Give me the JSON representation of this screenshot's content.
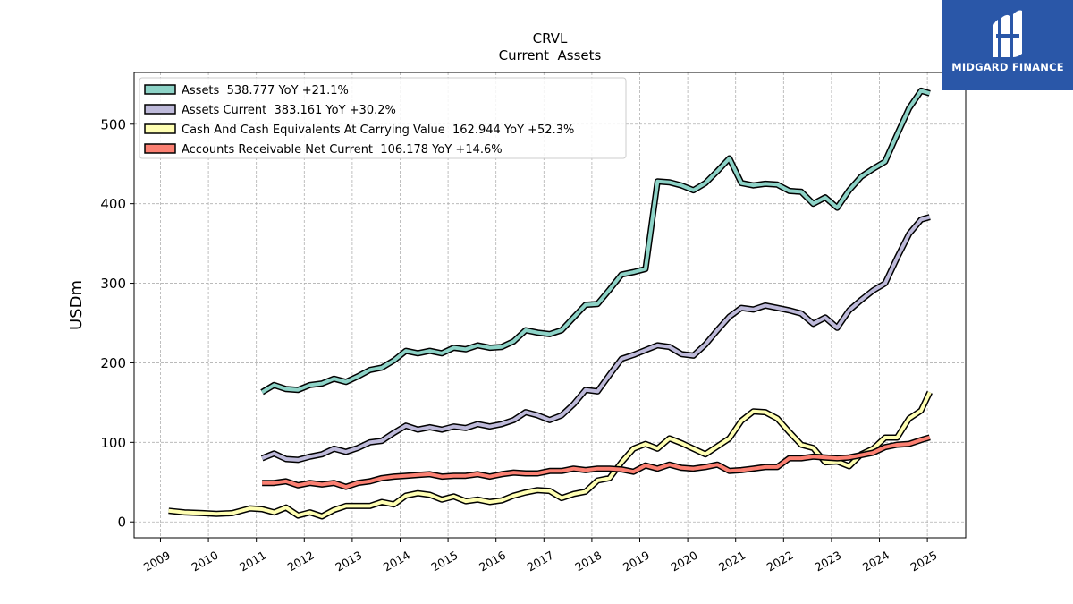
{
  "brand": {
    "name": "MIDGARD FINANCE",
    "bg_color": "#2a57a8"
  },
  "chart_data": {
    "type": "line",
    "title": "CRVL",
    "subtitle": "Current  Assets",
    "ylabel": "USDm",
    "xlabel": "",
    "xlim": [
      2008.45,
      2025.8
    ],
    "ylim": [
      -20,
      565
    ],
    "yticks": [
      0,
      100,
      200,
      300,
      400,
      500
    ],
    "xticks": [
      2009,
      2010,
      2011,
      2012,
      2013,
      2014,
      2015,
      2016,
      2017,
      2018,
      2019,
      2020,
      2021,
      2022,
      2023,
      2024,
      2025
    ],
    "grid": true,
    "legend_position": "top-left",
    "series": [
      {
        "name": "Assets",
        "legend": "Assets  538.777 YoY +21.1%",
        "color": "#8dd3c7",
        "x": [
          2011.12,
          2011.37,
          2011.62,
          2011.87,
          2012.12,
          2012.37,
          2012.62,
          2012.87,
          2013.12,
          2013.37,
          2013.62,
          2013.87,
          2014.12,
          2014.37,
          2014.62,
          2014.87,
          2015.12,
          2015.37,
          2015.62,
          2015.87,
          2016.12,
          2016.37,
          2016.62,
          2016.87,
          2017.12,
          2017.37,
          2017.62,
          2017.87,
          2018.12,
          2018.37,
          2018.62,
          2018.87,
          2019.12,
          2019.37,
          2019.62,
          2019.87,
          2020.12,
          2020.37,
          2020.62,
          2020.87,
          2021.12,
          2021.37,
          2021.62,
          2021.87,
          2022.12,
          2022.37,
          2022.62,
          2022.87,
          2023.12,
          2023.37,
          2023.62,
          2023.87,
          2024.12,
          2024.37,
          2024.62,
          2024.87,
          2025.05
        ],
        "values": [
          163,
          172,
          167,
          166,
          172,
          174,
          180,
          176,
          183,
          191,
          194,
          203,
          215,
          212,
          215,
          212,
          219,
          217,
          222,
          219,
          220,
          227,
          241,
          238,
          236,
          241,
          257,
          273,
          274,
          292,
          311,
          314,
          318,
          428,
          427,
          423,
          417,
          426,
          441,
          457,
          426,
          423,
          425,
          424,
          416,
          415,
          400,
          408,
          395,
          417,
          434,
          444,
          453,
          487,
          520,
          542,
          538.777
        ]
      },
      {
        "name": "Assets Current",
        "legend": "Assets Current  383.161 YoY +30.2%",
        "color": "#bebada",
        "x": [
          2011.12,
          2011.37,
          2011.62,
          2011.87,
          2012.12,
          2012.37,
          2012.62,
          2012.87,
          2013.12,
          2013.37,
          2013.62,
          2013.87,
          2014.12,
          2014.37,
          2014.62,
          2014.87,
          2015.12,
          2015.37,
          2015.62,
          2015.87,
          2016.12,
          2016.37,
          2016.62,
          2016.87,
          2017.12,
          2017.37,
          2017.62,
          2017.87,
          2018.12,
          2018.37,
          2018.62,
          2018.87,
          2019.12,
          2019.37,
          2019.62,
          2019.87,
          2020.12,
          2020.37,
          2020.62,
          2020.87,
          2021.12,
          2021.37,
          2021.62,
          2021.87,
          2022.12,
          2022.37,
          2022.62,
          2022.87,
          2023.12,
          2023.37,
          2023.62,
          2023.87,
          2024.12,
          2024.37,
          2024.62,
          2024.87,
          2025.05
        ],
        "values": [
          80,
          86,
          79,
          78,
          82,
          85,
          92,
          88,
          93,
          100,
          102,
          112,
          121,
          116,
          119,
          116,
          120,
          118,
          123,
          120,
          123,
          128,
          138,
          134,
          128,
          134,
          148,
          166,
          164,
          185,
          205,
          210,
          216,
          222,
          220,
          211,
          209,
          223,
          241,
          258,
          269,
          267,
          272,
          269,
          266,
          262,
          249,
          257,
          244,
          266,
          279,
          291,
          300,
          332,
          362,
          380,
          383.161
        ]
      },
      {
        "name": "Cash And Cash Equivalents At Carrying Value",
        "legend": "Cash And Cash Equivalents At Carrying Value  162.944 YoY +52.3%",
        "color": "#ffffb3",
        "x": [
          2009.17,
          2009.5,
          2009.87,
          2010.17,
          2010.5,
          2010.87,
          2011.12,
          2011.37,
          2011.62,
          2011.87,
          2012.12,
          2012.37,
          2012.62,
          2012.87,
          2013.12,
          2013.37,
          2013.62,
          2013.87,
          2014.12,
          2014.37,
          2014.62,
          2014.87,
          2015.12,
          2015.37,
          2015.62,
          2015.87,
          2016.12,
          2016.37,
          2016.62,
          2016.87,
          2017.12,
          2017.37,
          2017.62,
          2017.87,
          2018.12,
          2018.37,
          2018.62,
          2018.87,
          2019.12,
          2019.37,
          2019.62,
          2019.87,
          2020.12,
          2020.37,
          2020.62,
          2020.87,
          2021.12,
          2021.37,
          2021.62,
          2021.87,
          2022.12,
          2022.37,
          2022.62,
          2022.87,
          2023.12,
          2023.37,
          2023.62,
          2023.87,
          2024.12,
          2024.37,
          2024.62,
          2024.87,
          2025.05
        ],
        "values": [
          14,
          12,
          11,
          10,
          11,
          17,
          16,
          12,
          18,
          8,
          12,
          7,
          15,
          20,
          20,
          20,
          25,
          22,
          33,
          36,
          34,
          28,
          32,
          26,
          28,
          25,
          27,
          33,
          37,
          40,
          39,
          30,
          35,
          38,
          52,
          55,
          75,
          92,
          98,
          92,
          105,
          99,
          92,
          85,
          95,
          105,
          127,
          139,
          138,
          130,
          113,
          97,
          93,
          75,
          76,
          70,
          85,
          92,
          106,
          106,
          130,
          140,
          162.944
        ]
      },
      {
        "name": "Accounts Receivable Net Current",
        "legend": "Accounts Receivable Net Current  106.178 YoY +14.6%",
        "color": "#fb8072",
        "x": [
          2011.12,
          2011.37,
          2011.62,
          2011.87,
          2012.12,
          2012.37,
          2012.62,
          2012.87,
          2013.12,
          2013.37,
          2013.62,
          2013.87,
          2014.12,
          2014.37,
          2014.62,
          2014.87,
          2015.12,
          2015.37,
          2015.62,
          2015.87,
          2016.12,
          2016.37,
          2016.62,
          2016.87,
          2017.12,
          2017.37,
          2017.62,
          2017.87,
          2018.12,
          2018.37,
          2018.62,
          2018.87,
          2019.12,
          2019.37,
          2019.62,
          2019.87,
          2020.12,
          2020.37,
          2020.62,
          2020.87,
          2021.12,
          2021.37,
          2021.62,
          2021.87,
          2022.12,
          2022.37,
          2022.62,
          2022.87,
          2023.12,
          2023.37,
          2023.62,
          2023.87,
          2024.12,
          2024.37,
          2024.62,
          2024.87,
          2025.05
        ],
        "values": [
          49,
          49,
          51,
          46,
          49,
          47,
          49,
          44,
          49,
          51,
          55,
          57,
          58,
          59,
          60,
          57,
          58,
          58,
          60,
          57,
          60,
          62,
          61,
          61,
          64,
          64,
          67,
          65,
          67,
          67,
          66,
          63,
          71,
          67,
          72,
          68,
          67,
          69,
          72,
          64,
          65,
          67,
          69,
          69,
          80,
          80,
          82,
          81,
          80,
          81,
          84,
          87,
          94,
          97,
          98,
          103,
          106.178
        ]
      }
    ]
  }
}
